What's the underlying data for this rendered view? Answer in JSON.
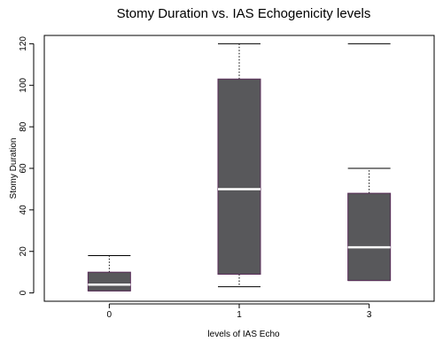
{
  "chart_data": {
    "type": "boxplot",
    "title": "Stomy Duration vs. IAS Echogenicity levels",
    "xlabel": "levels of IAS Echo",
    "ylabel": "Stomy Duration",
    "ylim": [
      -4,
      124
    ],
    "yticks": [
      "0",
      "20",
      "40",
      "60",
      "80",
      "100",
      "120"
    ],
    "categories": [
      "0",
      "1",
      "3"
    ],
    "boxes": [
      {
        "category": "0",
        "whisker_low": 1,
        "q1": 1,
        "median": 4,
        "q3": 10,
        "whisker_high": 18
      },
      {
        "category": "1",
        "whisker_low": 3,
        "q1": 9,
        "median": 50,
        "q3": 103,
        "whisker_high": 120
      },
      {
        "category": "3",
        "whisker_low": 6,
        "q1": 6,
        "median": 22,
        "q3": 48,
        "whisker_high": 60,
        "outliers": [
          120
        ]
      }
    ],
    "colors": {
      "box_fill": "#58585b",
      "median": "#ffffff",
      "box_border": "#5a2d5a",
      "axis": "#000000"
    },
    "grid": false,
    "legend": "none"
  }
}
